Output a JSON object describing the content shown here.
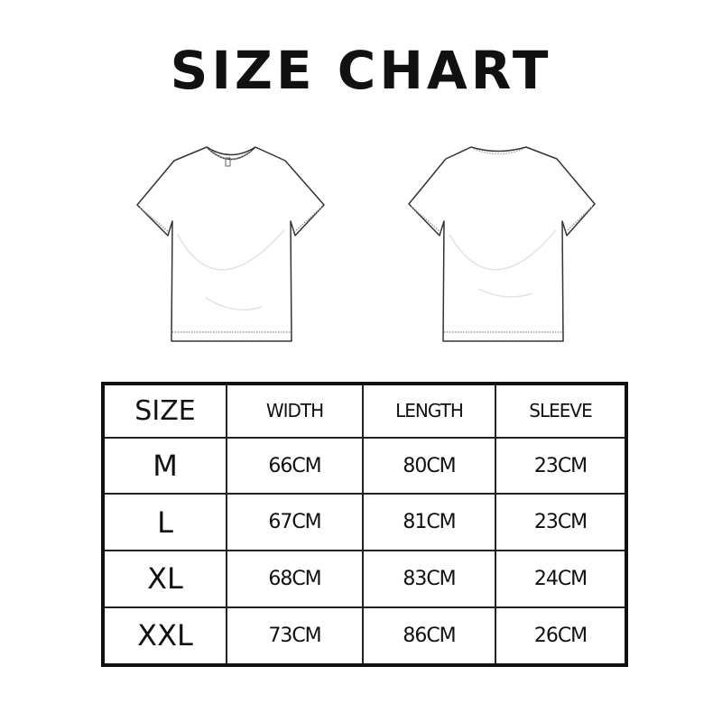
{
  "title": "SIZE CHART",
  "table": {
    "headers": [
      "SIZE",
      "WIDTH",
      "LENGTH",
      "SLEEVE"
    ],
    "rows": [
      [
        "M",
        "66CM",
        "80CM",
        "23CM"
      ],
      [
        "L",
        "67CM",
        "81CM",
        "23CM"
      ],
      [
        "XL",
        "68CM",
        "83CM",
        "24CM"
      ],
      [
        "XXL",
        "73CM",
        "86CM",
        "26CM"
      ]
    ]
  },
  "illustrations": [
    "t-shirt-front",
    "t-shirt-back"
  ]
}
